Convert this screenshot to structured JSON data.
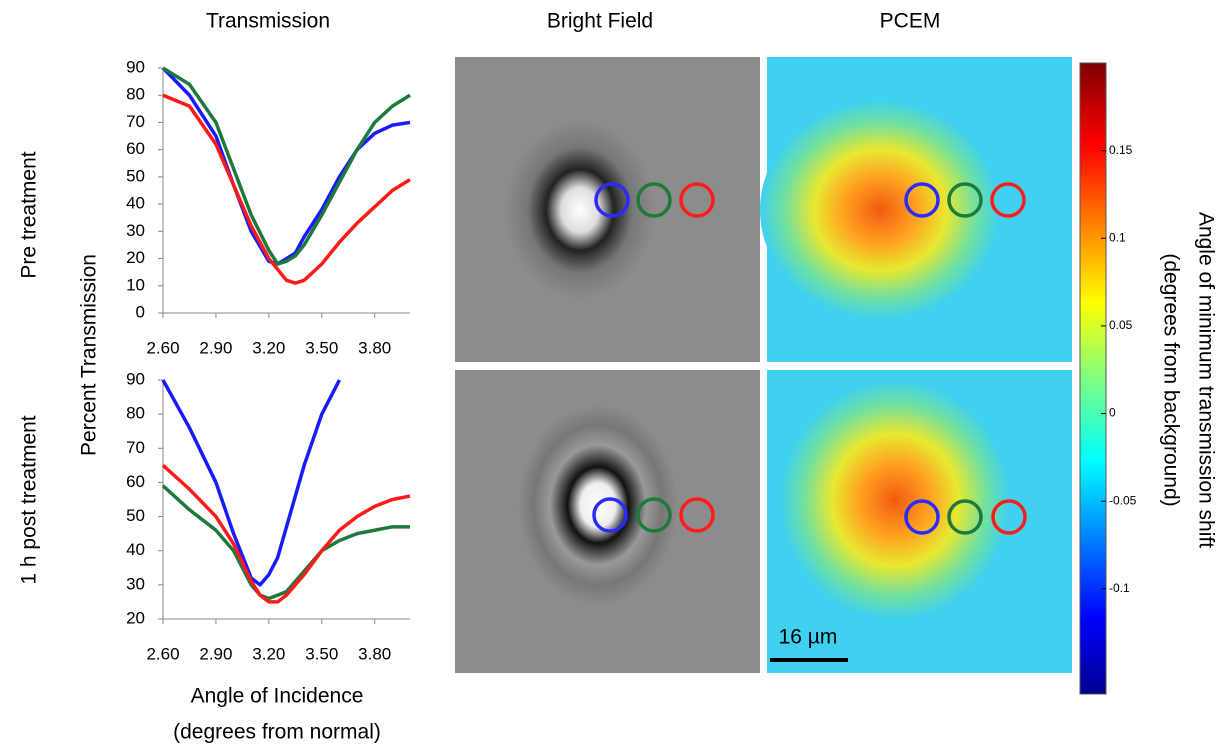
{
  "headers": {
    "transmission": "Transmission",
    "bright_field": "Bright Field",
    "pcem": "PCEM"
  },
  "row_labels": [
    "Pre treatment",
    "1 h post treatment"
  ],
  "ylabel": "Percent Transmission",
  "xlabel": [
    "Angle of Incidence",
    "(degrees from normal)"
  ],
  "chart_data": [
    {
      "type": "line",
      "x": [
        2.6,
        2.75,
        2.9,
        3.0,
        3.1,
        3.2,
        3.25,
        3.3,
        3.35,
        3.4,
        3.5,
        3.6,
        3.7,
        3.8,
        3.9,
        4.0
      ],
      "series": [
        {
          "color": "#1a1aff",
          "values": [
            90,
            80,
            65,
            47,
            30,
            19,
            18,
            20,
            22,
            28,
            38,
            50,
            60,
            66,
            69,
            70
          ]
        },
        {
          "color": "#1e7a3c",
          "values": [
            90,
            84,
            70,
            53,
            36,
            23,
            18,
            19,
            21,
            25,
            36,
            48,
            60,
            70,
            76,
            80
          ]
        },
        {
          "color": "#ff1a1a",
          "values": [
            80,
            76,
            62,
            47,
            32,
            20,
            16,
            12,
            11,
            12,
            18,
            26,
            33,
            39,
            45,
            49
          ]
        }
      ],
      "xlim": [
        2.6,
        4.0
      ],
      "ylim": [
        0,
        90
      ],
      "xticks": [
        {
          "value": 2.6,
          "label": "2.60"
        },
        {
          "value": 2.9,
          "label": "2.90"
        },
        {
          "value": 3.2,
          "label": "3.20"
        },
        {
          "value": 3.5,
          "label": "3.50"
        },
        {
          "value": 3.8,
          "label": "3.80"
        }
      ],
      "yticks": [
        0,
        10,
        20,
        30,
        40,
        50,
        60,
        70,
        80,
        90
      ]
    },
    {
      "type": "line",
      "x": [
        2.6,
        2.75,
        2.9,
        3.0,
        3.1,
        3.15,
        3.2,
        3.25,
        3.3,
        3.4,
        3.5,
        3.6,
        3.7,
        3.8,
        3.9,
        4.0
      ],
      "series": [
        {
          "color": "#1a1aff",
          "values": [
            90,
            76,
            60,
            45,
            32,
            30,
            33,
            38,
            47,
            65,
            80,
            90,
            null,
            null,
            null,
            null
          ]
        },
        {
          "color": "#1e7a3c",
          "values": [
            59,
            52,
            46,
            40,
            30,
            27,
            26,
            27,
            28,
            34,
            40,
            43,
            45,
            46,
            47,
            47
          ]
        },
        {
          "color": "#ff1a1a",
          "values": [
            65,
            58,
            50,
            42,
            31,
            27,
            25,
            25,
            27,
            33,
            40,
            46,
            50,
            53,
            55,
            56
          ]
        }
      ],
      "xlim": [
        2.6,
        4.0
      ],
      "ylim": [
        20,
        90
      ],
      "xticks": [
        {
          "value": 2.6,
          "label": "2.60"
        },
        {
          "value": 2.9,
          "label": "2.90"
        },
        {
          "value": 3.2,
          "label": "3.20"
        },
        {
          "value": 3.5,
          "label": "3.50"
        },
        {
          "value": 3.8,
          "label": "3.80"
        }
      ],
      "yticks": [
        20,
        30,
        40,
        50,
        60,
        70,
        80,
        90
      ]
    }
  ],
  "colorbar": {
    "label": [
      "Angle of minimum transmission shift",
      "(degrees from background)"
    ],
    "lim": [
      -0.16,
      0.2
    ],
    "ticks": [
      0.15,
      0.1,
      0.05,
      0,
      -0.05,
      -0.1
    ]
  },
  "scale_bar": "16 µm"
}
